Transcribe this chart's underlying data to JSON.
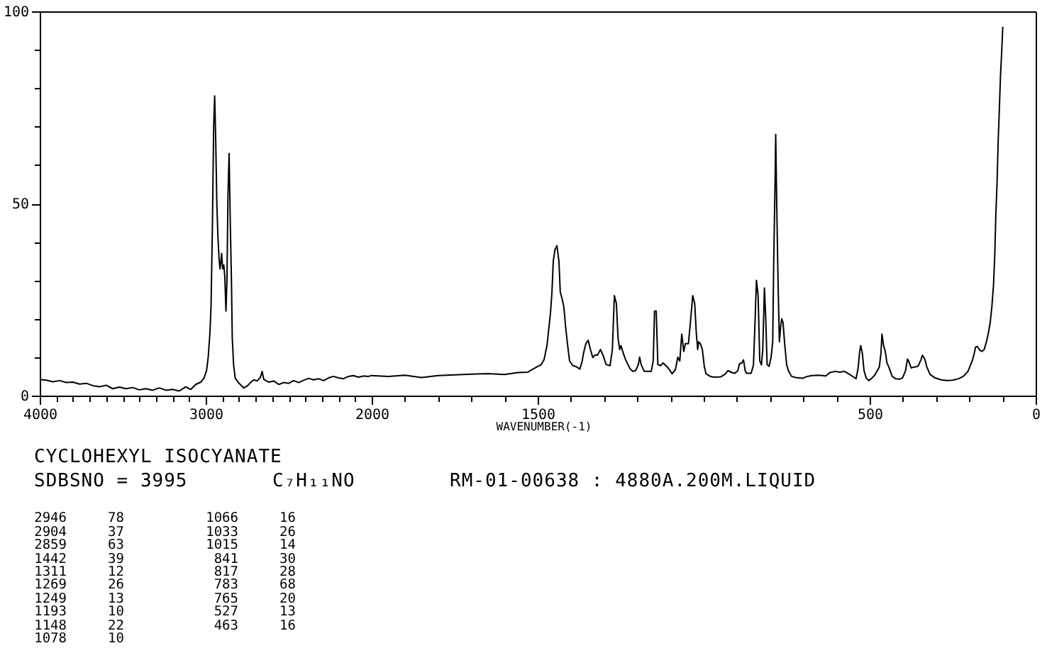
{
  "chart_data": [
    {
      "type": "line",
      "color": "#000000",
      "x": [
        4000,
        3960,
        3920,
        3880,
        3840,
        3800,
        3760,
        3720,
        3680,
        3640,
        3600,
        3560,
        3520,
        3480,
        3440,
        3400,
        3360,
        3320,
        3280,
        3240,
        3200,
        3160,
        3120,
        3090,
        3060,
        3030,
        3010,
        2995,
        2985,
        2975,
        2968,
        2960,
        2952,
        2946,
        2940,
        2933,
        2927,
        2920,
        2914,
        2908,
        2904,
        2898,
        2891,
        2885,
        2878,
        2872,
        2866,
        2859,
        2852,
        2845,
        2840,
        2832,
        2822,
        2805,
        2790,
        2770,
        2750,
        2730,
        2710,
        2690,
        2670,
        2660,
        2650,
        2620,
        2590,
        2560,
        2530,
        2500,
        2470,
        2440,
        2410,
        2380,
        2350,
        2320,
        2290,
        2260,
        2230,
        2200,
        2170,
        2140,
        2110,
        2080,
        2050,
        2020,
        2000
      ],
      "values": [
        4.2,
        4.0,
        3.6,
        3.9,
        3.4,
        3.5,
        3.0,
        3.2,
        2.6,
        2.3,
        2.7,
        1.8,
        2.2,
        1.8,
        2.1,
        1.5,
        1.8,
        1.4,
        2.0,
        1.4,
        1.6,
        1.2,
        2.3,
        1.6,
        2.9,
        3.5,
        4.6,
        6.5,
        10,
        16,
        23,
        43,
        70,
        78,
        67,
        50,
        42,
        36,
        33,
        35,
        37,
        33,
        34,
        31,
        22,
        30,
        52,
        63,
        45,
        30,
        15,
        8,
        4.5,
        3.5,
        2.8,
        2.0,
        2.5,
        3.4,
        4.1,
        3.8,
        4.8,
        6.3,
        4.2,
        3.5,
        3.8,
        2.9,
        3.4,
        3.2,
        3.9,
        3.4,
        4.0,
        4.5,
        4.1,
        4.4,
        3.9,
        4.6,
        5.0,
        4.6,
        4.4,
        5.0,
        5.2,
        4.8,
        5.1,
        5.0,
        5.2
      ],
      "xlim": [
        4000,
        2000
      ],
      "ylim": [
        0,
        100
      ],
      "xticks": [
        4000,
        {
          "value": 3900,
          "label": null
        },
        {
          "value": 3800,
          "label": null
        },
        {
          "value": 3700,
          "label": null
        },
        {
          "value": 3600,
          "label": null
        },
        {
          "value": 3500,
          "label": null
        },
        {
          "value": 3400,
          "label": null
        },
        {
          "value": 3300,
          "label": null
        },
        {
          "value": 3200,
          "label": null
        },
        {
          "value": 3100,
          "label": null
        },
        3000,
        {
          "value": 2900,
          "label": null
        },
        {
          "value": 2800,
          "label": null
        },
        {
          "value": 2700,
          "label": null
        },
        {
          "value": 2600,
          "label": null
        },
        {
          "value": 2500,
          "label": null
        },
        {
          "value": 2400,
          "label": null
        },
        {
          "value": 2300,
          "label": null
        },
        {
          "value": 2200,
          "label": null
        },
        {
          "value": 2100,
          "label": null
        },
        2000
      ],
      "yticks": [
        0,
        {
          "value": 10,
          "label": null
        },
        {
          "value": 20,
          "label": null
        },
        {
          "value": 30,
          "label": null
        },
        {
          "value": 40,
          "label": null
        },
        50,
        {
          "value": 60,
          "label": null
        },
        {
          "value": 70,
          "label": null
        },
        {
          "value": 80,
          "label": null
        },
        {
          "value": 90,
          "label": null
        },
        100
      ]
    },
    {
      "type": "line",
      "color": "#000000",
      "x": [
        2000,
        1950,
        1900,
        1850,
        1800,
        1750,
        1700,
        1650,
        1600,
        1560,
        1530,
        1502,
        1490,
        1481,
        1472,
        1467,
        1461,
        1457,
        1453,
        1448,
        1442,
        1436,
        1432,
        1426,
        1421,
        1416,
        1411,
        1404,
        1394,
        1383,
        1373,
        1366,
        1362,
        1355,
        1348,
        1341,
        1334,
        1327,
        1320,
        1311,
        1303,
        1294,
        1282,
        1275,
        1269,
        1263,
        1258,
        1253,
        1249,
        1242,
        1235,
        1222,
        1214,
        1205,
        1197,
        1193,
        1188,
        1179,
        1158,
        1152,
        1148,
        1143,
        1138,
        1130,
        1122,
        1108,
        1095,
        1085,
        1078,
        1072,
        1066,
        1060,
        1055,
        1046,
        1040,
        1033,
        1027,
        1022,
        1018,
        1015,
        1010,
        1004,
        998,
        993,
        980,
        969,
        948,
        935,
        927,
        915,
        906,
        897,
        892,
        885,
        880,
        875,
        871,
        857,
        850,
        845,
        841,
        836,
        831,
        826,
        822,
        817,
        813,
        809,
        803,
        797,
        792,
        789,
        785,
        783,
        780,
        776,
        772,
        768,
        765,
        761,
        756,
        750,
        744,
        735,
        723,
        702,
        688,
        674,
        653,
        632,
        620,
        604,
        590,
        576,
        562,
        548,
        541,
        535,
        530,
        527,
        522,
        517,
        510,
        503,
        494,
        485,
        477,
        471,
        466,
        463,
        458,
        453,
        448,
        443,
        432,
        422,
        410,
        401,
        392,
        386,
        383,
        375,
        368,
        360,
        354,
        346,
        341,
        334,
        328,
        318,
        303,
        285,
        267,
        250,
        232,
        218,
        204,
        196,
        190,
        185,
        181,
        176,
        168,
        162,
        155,
        148,
        143,
        137,
        132,
        127,
        123,
        120,
        116,
        113,
        110,
        106,
        102,
        99
      ],
      "values": [
        5.2,
        5.0,
        5.3,
        4.7,
        5.2,
        5.4,
        5.6,
        5.7,
        5.5,
        6.0,
        6.1,
        7.5,
        8.0,
        9.3,
        13,
        17,
        22,
        27,
        35,
        38,
        39,
        35,
        27,
        25,
        23,
        18,
        14,
        9,
        7.8,
        7.5,
        6.9,
        9,
        11,
        13.5,
        14.4,
        12,
        9.9,
        10.6,
        10.5,
        12,
        10.5,
        8.1,
        7.8,
        12,
        26,
        24,
        15,
        12,
        13,
        11,
        9.3,
        7,
        6.3,
        6.5,
        8,
        10,
        8,
        6.3,
        6.3,
        9,
        22,
        22,
        8.1,
        7.8,
        8.5,
        7.3,
        5.7,
        6.8,
        10,
        9,
        16,
        11.5,
        13.5,
        13.5,
        19,
        26,
        24,
        16,
        12,
        14,
        13.5,
        12,
        7.5,
        5.7,
        5.0,
        4.8,
        4.9,
        5.6,
        6.5,
        6.0,
        5.8,
        6.5,
        8.3,
        8.5,
        9.3,
        6.5,
        5.8,
        5.8,
        8,
        20,
        30,
        26,
        9,
        8,
        12,
        28,
        20,
        8.1,
        7.6,
        10,
        14,
        35,
        55,
        68,
        50,
        30,
        14,
        18,
        20,
        19,
        13.5,
        8,
        6.3,
        5,
        4.7,
        4.5,
        5.0,
        5.2,
        5.3,
        5.1,
        6.0,
        6.3,
        6.1,
        6.3,
        5.6,
        4.8,
        4.4,
        7,
        11.5,
        13,
        11,
        6.5,
        4.5,
        3.9,
        4.5,
        5.3,
        6.5,
        7.4,
        11,
        16,
        13,
        11.5,
        8.5,
        7.6,
        5,
        4.4,
        4.3,
        4.6,
        6.5,
        9.5,
        9.1,
        7.2,
        7.4,
        7.5,
        7.7,
        9.2,
        10.5,
        9.5,
        7.5,
        5.5,
        4.6,
        4.1,
        3.9,
        4.0,
        4.4,
        5.0,
        6.3,
        8,
        9.3,
        11,
        12.6,
        12.8,
        11.8,
        11.5,
        12,
        14.1,
        16,
        19,
        23,
        28.7,
        37,
        46.8,
        56,
        66,
        73,
        83,
        90,
        96
      ],
      "xlim": [
        2000,
        0
      ],
      "ylim": [
        0,
        100
      ],
      "xlabel": "WAVENUMBER(-1)",
      "tick_labels": "x",
      "xticks": [
        {
          "value": 2000,
          "label": null
        },
        {
          "value": 1900,
          "label": null
        },
        {
          "value": 1800,
          "label": null
        },
        {
          "value": 1700,
          "label": null
        },
        {
          "value": 1600,
          "label": null
        },
        1500,
        {
          "value": 1400,
          "label": null
        },
        {
          "value": 1300,
          "label": null
        },
        {
          "value": 1200,
          "label": null
        },
        {
          "value": 1100,
          "label": null
        },
        {
          "value": 1000,
          "label": null
        },
        {
          "value": 900,
          "label": null
        },
        {
          "value": 800,
          "label": null
        },
        {
          "value": 700,
          "label": null
        },
        {
          "value": 600,
          "label": null
        },
        500,
        {
          "value": 400,
          "label": null
        },
        {
          "value": 300,
          "label": null
        },
        {
          "value": 200,
          "label": null
        },
        {
          "value": 100,
          "label": null
        },
        0
      ]
    },
    {
      "type": "other",
      "title": "CYCLOHEXYL ISOCYANATE",
      "subtitle": "SDBSNO = 3995",
      "annotations": [
        "C₇H₁₁NO",
        "RM-01-00638 : 4880A.200M.LIQUID",
        "2946",
        "78",
        "2904",
        "37",
        "2859",
        "63",
        "1442",
        "39",
        "1311",
        "12",
        "1269",
        "26",
        "1249",
        "13",
        "1193",
        "10",
        "1148",
        "22",
        "1078",
        "10",
        "1066",
        "16",
        "1033",
        "26",
        "1015",
        "14",
        "841",
        "30",
        "817",
        "28",
        "783",
        "68",
        "765",
        "20",
        "527",
        "13",
        "463",
        "16"
      ]
    }
  ]
}
